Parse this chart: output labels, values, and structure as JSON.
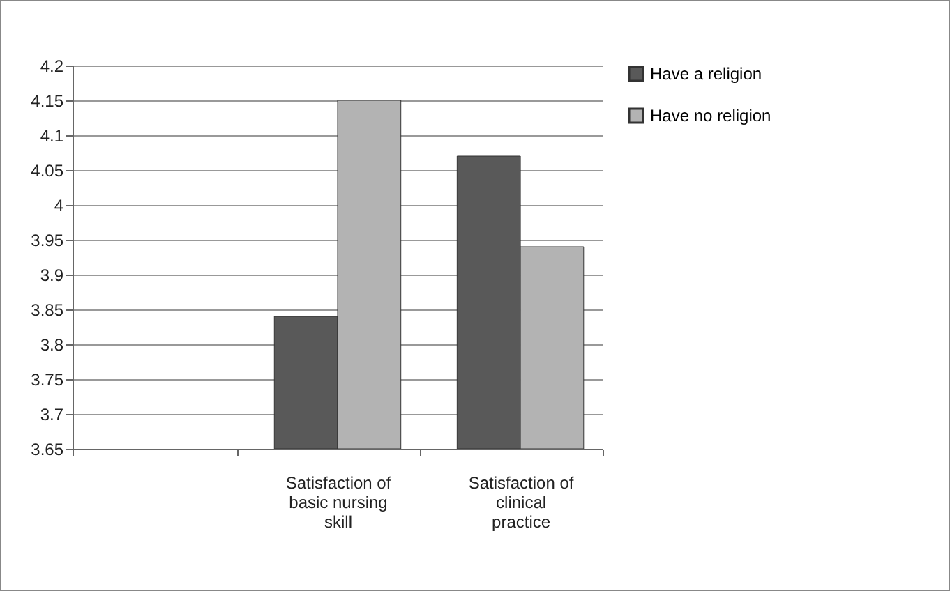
{
  "chart_data": {
    "type": "bar",
    "categories": [
      null,
      "Satisfaction of basic nursing skill",
      "Satisfaction of clinical practice"
    ],
    "series": [
      {
        "name": "Have a religion",
        "color": "#595959",
        "values": [
          null,
          3.84,
          4.07
        ]
      },
      {
        "name": "Have no religion",
        "color": "#b3b3b3",
        "values": [
          null,
          4.15,
          3.94
        ]
      }
    ],
    "ylim": [
      3.65,
      4.2
    ],
    "yticks": [
      3.65,
      3.7,
      3.75,
      3.8,
      3.85,
      3.9,
      3.95,
      4,
      4.05,
      4.1,
      4.15,
      4.2
    ],
    "grid": "y",
    "legend": "right"
  }
}
